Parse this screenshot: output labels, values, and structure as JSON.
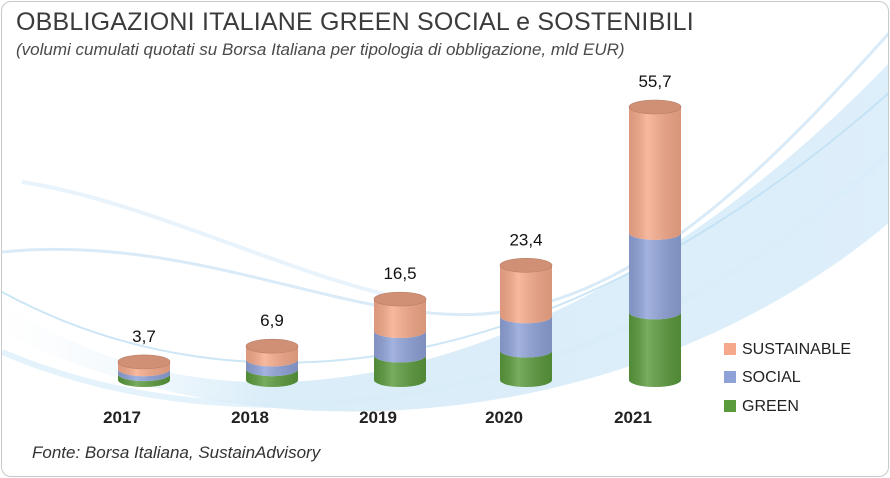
{
  "title": "OBBLIGAZIONI ITALIANE GREEN SOCIAL e SOSTENIBILI",
  "subtitle": "(volumi cumulati quotati su Borsa Italiana per tipologia di obbligazione, mld EUR)",
  "source": "Fonte: Borsa Italiana, SustainAdvisory",
  "colors": {
    "sustainable": "#f5a98a",
    "social": "#8fa2d8",
    "green": "#5a9a3c"
  },
  "chart_data": {
    "type": "bar",
    "stacked": true,
    "categories": [
      "2017",
      "2018",
      "2019",
      "2020",
      "2021"
    ],
    "series": [
      {
        "name": "GREEN",
        "values": [
          1.2,
          2.2,
          5.0,
          6.0,
          13.8
        ]
      },
      {
        "name": "SOCIAL",
        "values": [
          1.0,
          2.0,
          5.0,
          7.0,
          16.2
        ]
      },
      {
        "name": "SUSTAINABLE",
        "values": [
          1.5,
          2.7,
          6.5,
          10.4,
          25.7
        ]
      }
    ],
    "totals": [
      "3,7",
      "6,9",
      "16,5",
      "23,4",
      "55,7"
    ],
    "legend": {
      "position": "right",
      "items": [
        "SUSTAINABLE",
        "SOCIAL",
        "GREEN"
      ]
    },
    "ylim": [
      0,
      55.7
    ],
    "grid": false
  }
}
